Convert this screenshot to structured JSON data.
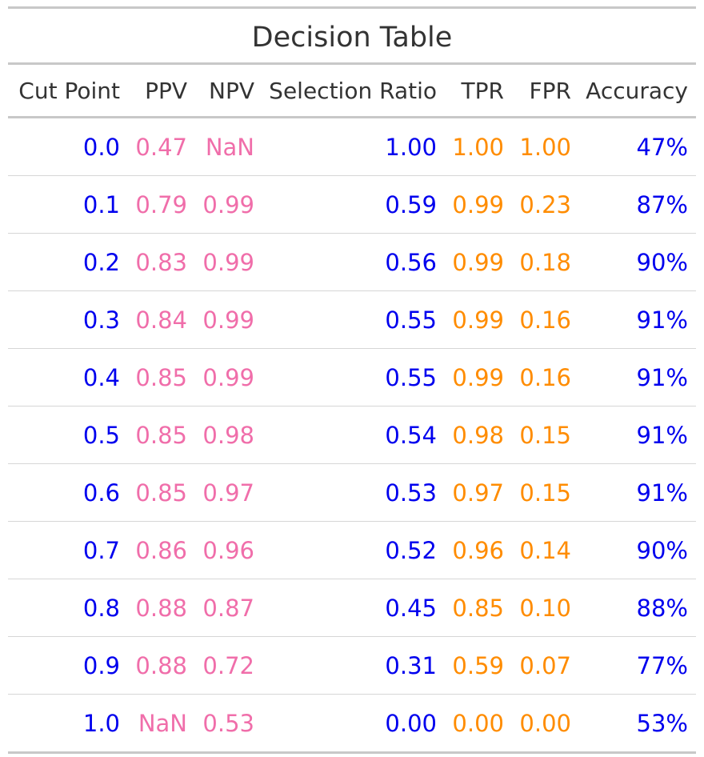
{
  "title": "Decision Table",
  "colors": {
    "blue": "#0000ee",
    "pink": "#f06eaa",
    "orange": "#ff8c00",
    "header": "#333333"
  },
  "columns": [
    "Cut Point",
    "PPV",
    "NPV",
    "Selection Ratio",
    "TPR",
    "FPR",
    "Accuracy"
  ],
  "rows": [
    [
      "0.0",
      "0.47",
      "NaN",
      "1.00",
      "1.00",
      "1.00",
      "47%"
    ],
    [
      "0.1",
      "0.79",
      "0.99",
      "0.59",
      "0.99",
      "0.23",
      "87%"
    ],
    [
      "0.2",
      "0.83",
      "0.99",
      "0.56",
      "0.99",
      "0.18",
      "90%"
    ],
    [
      "0.3",
      "0.84",
      "0.99",
      "0.55",
      "0.99",
      "0.16",
      "91%"
    ],
    [
      "0.4",
      "0.85",
      "0.99",
      "0.55",
      "0.99",
      "0.16",
      "91%"
    ],
    [
      "0.5",
      "0.85",
      "0.98",
      "0.54",
      "0.98",
      "0.15",
      "91%"
    ],
    [
      "0.6",
      "0.85",
      "0.97",
      "0.53",
      "0.97",
      "0.15",
      "91%"
    ],
    [
      "0.7",
      "0.86",
      "0.96",
      "0.52",
      "0.96",
      "0.14",
      "90%"
    ],
    [
      "0.8",
      "0.88",
      "0.87",
      "0.45",
      "0.85",
      "0.10",
      "88%"
    ],
    [
      "0.9",
      "0.88",
      "0.72",
      "0.31",
      "0.59",
      "0.07",
      "77%"
    ],
    [
      "1.0",
      "NaN",
      "0.53",
      "0.00",
      "0.00",
      "0.00",
      "53%"
    ]
  ]
}
